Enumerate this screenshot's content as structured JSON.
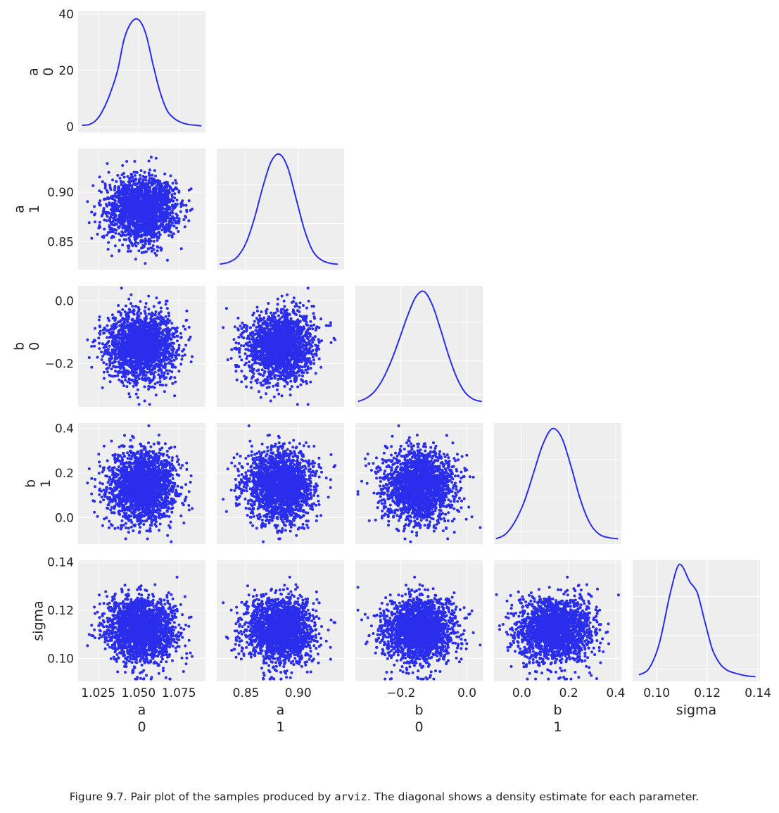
{
  "chart_data": {
    "type": "scatter",
    "kind": "pair plot (corner) with KDE on diagonal",
    "point_color": "#2a2eec",
    "panel_background": "#eeeeee",
    "grid": true,
    "variables": [
      {
        "name": "a",
        "index": "0",
        "label_top": "a",
        "label_bottom": "0",
        "lim": [
          1.0125,
          1.0915
        ],
        "ticks": [
          1.025,
          1.05,
          1.075
        ],
        "tick_labels": [
          "1.025",
          "1.050",
          "1.075"
        ],
        "mean": 1.052,
        "sd": 0.0105
      },
      {
        "name": "a",
        "index": "1",
        "label_top": "a",
        "label_bottom": "1",
        "lim": [
          0.822,
          0.944
        ],
        "ticks": [
          0.85,
          0.9
        ],
        "tick_labels": [
          "0.85",
          "0.90"
        ],
        "mean": 0.883,
        "sd": 0.016
      },
      {
        "name": "b",
        "index": "0",
        "label_top": "b",
        "label_bottom": "0",
        "lim": [
          -0.338,
          0.048
        ],
        "ticks": [
          -0.2,
          0.0
        ],
        "tick_labels": [
          "−0.2",
          "0.0"
        ],
        "mean": -0.143,
        "sd": 0.055
      },
      {
        "name": "b",
        "index": "1",
        "label_top": "b",
        "label_bottom": "1",
        "lim": [
          -0.118,
          0.424
        ],
        "ticks": [
          0.0,
          0.2,
          0.4
        ],
        "tick_labels": [
          "0.0",
          "0.2",
          "0.4"
        ],
        "mean": 0.14,
        "sd": 0.075
      },
      {
        "name": "sigma",
        "index": "",
        "label_top": "sigma",
        "label_bottom": "",
        "lim": [
          0.0905,
          0.1408
        ],
        "ticks": [
          0.1,
          0.12,
          0.14
        ],
        "tick_labels": [
          "0.10",
          "0.12",
          "0.14"
        ],
        "mean": 0.112,
        "sd": 0.0066
      }
    ],
    "diagonal_density": [
      {
        "variable": "a 0",
        "ylim": [
          -2,
          41
        ],
        "yticks": [
          0,
          20,
          40
        ],
        "ytick_labels": [
          "0",
          "20",
          "40"
        ],
        "x": [
          1.015,
          1.0195,
          1.024,
          1.028,
          1.0325,
          1.037,
          1.041,
          1.0455,
          1.05,
          1.0545,
          1.059,
          1.063,
          1.0675,
          1.072,
          1.0765,
          1.081,
          1.0855,
          1.089
        ],
        "y": [
          0.5,
          0.8,
          2.5,
          6,
          12,
          20,
          31,
          37,
          38,
          33,
          22,
          13,
          6,
          3,
          1.5,
          0.8,
          0.5,
          0.3
        ]
      },
      {
        "variable": "a 1",
        "x": [
          0.825,
          0.834,
          0.842,
          0.85,
          0.858,
          0.866,
          0.874,
          0.882,
          0.89,
          0.898,
          0.906,
          0.914,
          0.922,
          0.93,
          0.938
        ],
        "y": [
          0.01,
          0.03,
          0.08,
          0.2,
          0.42,
          0.7,
          0.93,
          1.0,
          0.88,
          0.6,
          0.32,
          0.13,
          0.05,
          0.02,
          0.01
        ]
      },
      {
        "variable": "b 0",
        "x": [
          -0.33,
          -0.305,
          -0.28,
          -0.255,
          -0.23,
          -0.205,
          -0.18,
          -0.155,
          -0.13,
          -0.105,
          -0.08,
          -0.055,
          -0.03,
          -0.005,
          0.02,
          0.045
        ],
        "y": [
          0.01,
          0.04,
          0.1,
          0.21,
          0.37,
          0.57,
          0.78,
          0.95,
          1.0,
          0.88,
          0.66,
          0.42,
          0.22,
          0.09,
          0.03,
          0.01
        ]
      },
      {
        "variable": "b 1",
        "x": [
          -0.11,
          -0.07,
          -0.03,
          0.01,
          0.05,
          0.09,
          0.13,
          0.17,
          0.21,
          0.25,
          0.29,
          0.33,
          0.37,
          0.41
        ],
        "y": [
          0.01,
          0.05,
          0.16,
          0.34,
          0.6,
          0.86,
          1.0,
          0.92,
          0.66,
          0.36,
          0.15,
          0.05,
          0.02,
          0.01
        ]
      },
      {
        "variable": "sigma",
        "x": [
          0.093,
          0.097,
          0.101,
          0.105,
          0.108,
          0.11,
          0.113,
          0.116,
          0.119,
          0.122,
          0.125,
          0.128,
          0.132,
          0.136,
          0.139
        ],
        "y": [
          0.02,
          0.08,
          0.3,
          0.72,
          0.98,
          1.0,
          0.86,
          0.76,
          0.5,
          0.25,
          0.12,
          0.06,
          0.03,
          0.01,
          0.005
        ]
      }
    ],
    "samples_per_panel": 2000,
    "correlation": "approximately uncorrelated (round point clouds)"
  },
  "caption": {
    "prefix": "Figure 9.7. Pair plot of the samples produced by ",
    "code": "arviz",
    "suffix": ". The diagonal shows a density estimate for each parameter."
  }
}
